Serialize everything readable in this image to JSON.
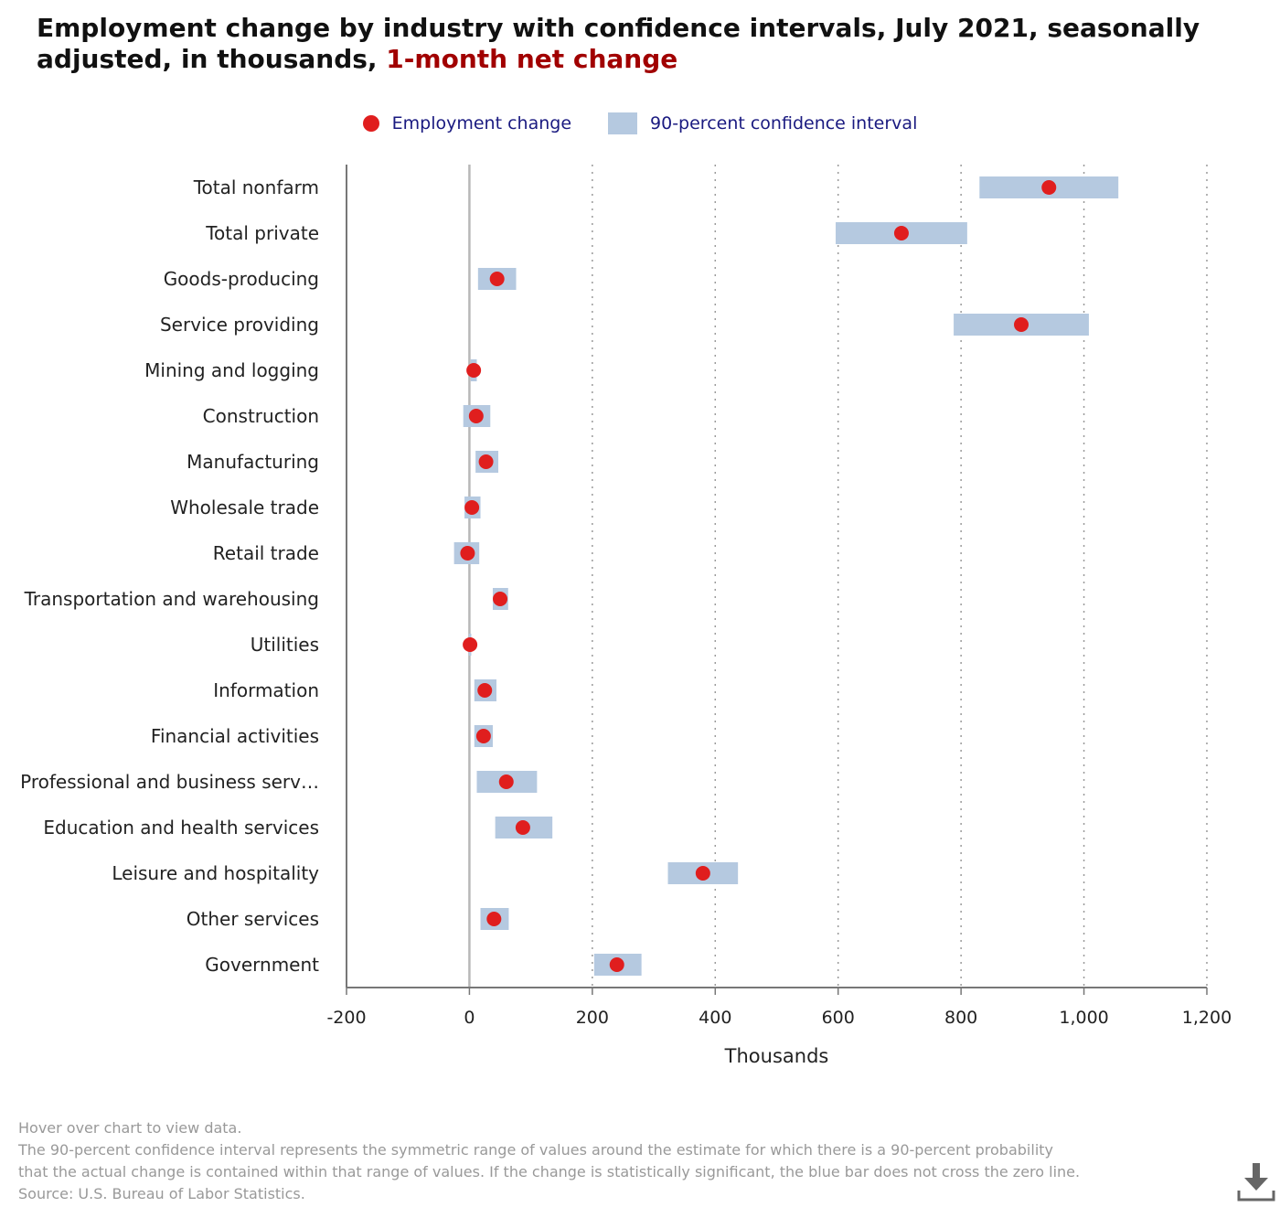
{
  "header": {
    "title_main": "Employment change by industry with confidence intervals, July 2021, seasonally adjusted, in thousands,",
    "title_highlight": "1-month net change"
  },
  "legend": {
    "estimate_label": "Employment change",
    "interval_label": "90-percent confidence interval"
  },
  "notes": {
    "hover_hint": "Hover over chart to view data.",
    "interval_note_line1": "The 90-percent confidence interval represents the symmetric range of values around the estimate for which there is a 90-percent probability",
    "interval_note_line2": "that the actual change is contained within that range of values. If the change is statistically significant, the blue bar does not cross the zero line.",
    "source": "Source: U.S. Bureau of Labor Statistics."
  },
  "icons": {
    "download": "download-icon"
  },
  "colors": {
    "estimate": "#e01e1e",
    "interval": "#b5c9e0",
    "title_highlight": "#a10000",
    "legend_text": "#1a1a80"
  },
  "chart_data": {
    "type": "scatter",
    "xlabel": "Thousands",
    "xlim": [
      -200,
      1200
    ],
    "xticks": [
      -200,
      0,
      200,
      400,
      600,
      800,
      1000,
      1200
    ],
    "xtick_labels": [
      "-200",
      "0",
      "200",
      "400",
      "600",
      "800",
      "1,000",
      "1,200"
    ],
    "grid": "vertical dotted",
    "legend_position": "top-center",
    "categories": [
      "Total nonfarm",
      "Total private",
      "Goods-producing",
      "Service providing",
      "Mining and logging",
      "Construction",
      "Manufacturing",
      "Wholesale trade",
      "Retail trade",
      "Transportation and warehousing",
      "Utilities",
      "Information",
      "Financial activities",
      "Professional and business serv…",
      "Education and health services",
      "Leisure and hospitality",
      "Other services",
      "Government"
    ],
    "series": [
      {
        "name": "Employment change",
        "values": [
          943,
          703,
          45,
          898,
          7,
          11,
          27,
          4,
          -3,
          50,
          1,
          25,
          23,
          60,
          87,
          380,
          40,
          240
        ]
      },
      {
        "name": "90-percent confidence interval",
        "low": [
          830,
          596,
          14,
          788,
          2,
          -10,
          10,
          -8,
          -25,
          38,
          -1,
          8,
          8,
          12,
          42,
          323,
          18,
          203
        ],
        "high": [
          1056,
          810,
          76,
          1008,
          12,
          34,
          47,
          18,
          16,
          63,
          3,
          44,
          38,
          110,
          135,
          437,
          64,
          280
        ]
      }
    ]
  }
}
